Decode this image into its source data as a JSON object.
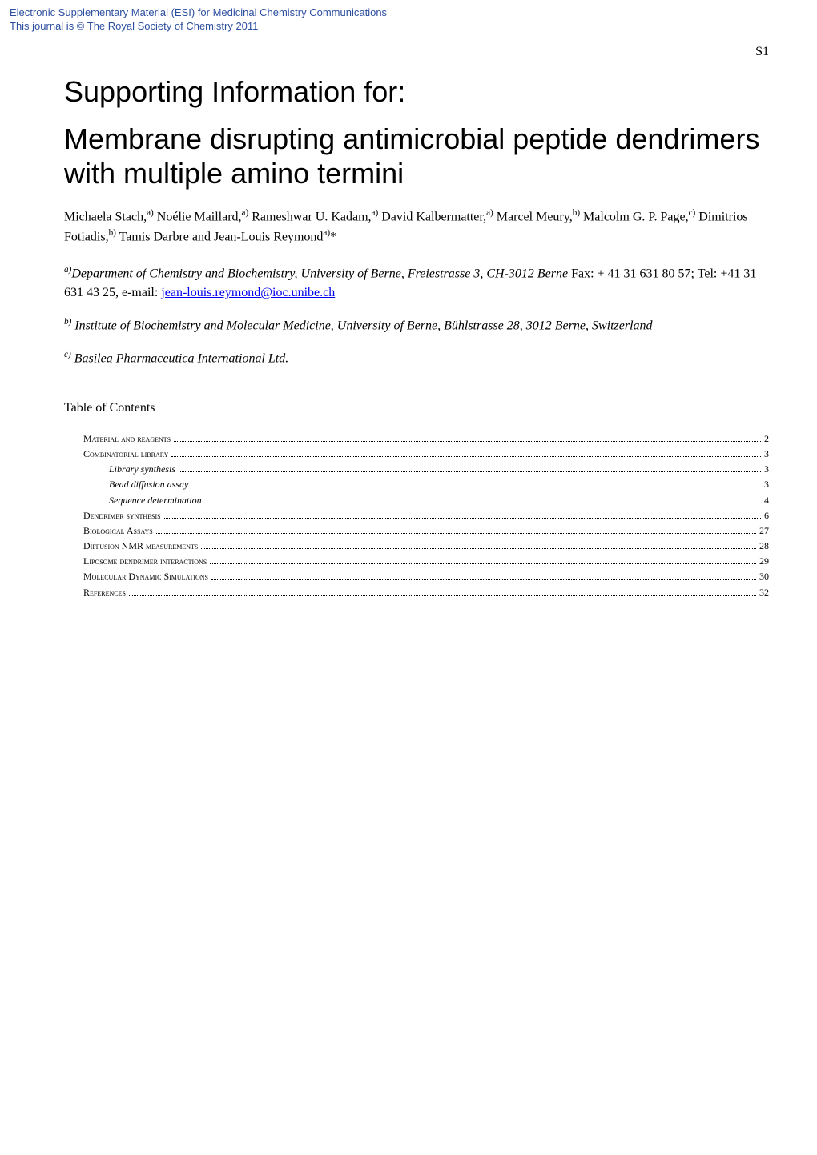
{
  "esi_header": {
    "line1": "Electronic Supplementary Material (ESI) for Medicinal Chemistry Communications",
    "line2": "This journal is © The Royal Society of Chemistry 2011"
  },
  "page_number": "S1",
  "main_title": "Supporting Information for:",
  "subtitle": "Membrane disrupting antimicrobial peptide dendrimers with multiple amino termini",
  "authors_html": "Michaela Stach,<sup>a)</sup> Noélie Maillard,<sup>a)</sup> Rameshwar U. Kadam,<sup>a)</sup> David Kalbermatter,<sup>a)</sup> Marcel Meury,<sup>b)</sup> Malcolm G. P. Page,<sup>c)</sup> Dimitrios Fotiadis,<sup>b)</sup> Tamis Darbre and Jean-Louis Reymond<sup>a)</sup>*",
  "affiliations": [
    {
      "sup": "a)",
      "italic": "Department of Chemistry and Biochemistry, University of Berne, Freiestrasse 3, CH-3012 Berne",
      "plain": " Fax: + 41 31 631 80 57; Tel: +41 31 631 43 25, e-mail: ",
      "email": "jean-louis.reymond@ioc.unibe.ch"
    },
    {
      "sup": "b)",
      "italic": " Institute of Biochemistry and Molecular Medicine, University of Berne, Bühlstrasse 28, 3012 Berne, Switzerland",
      "plain": "",
      "email": ""
    },
    {
      "sup": "c)",
      "italic": " Basilea Pharmaceutica International Ltd.",
      "plain": "",
      "email": ""
    }
  ],
  "toc_heading": "Table of Contents",
  "toc": [
    {
      "level": 1,
      "label": "Material and reagents",
      "page": "2"
    },
    {
      "level": 1,
      "label": "Combinatorial library",
      "page": "3"
    },
    {
      "level": 2,
      "label": "Library synthesis",
      "page": "3"
    },
    {
      "level": 2,
      "label": "Bead diffusion assay",
      "page": "3"
    },
    {
      "level": 2,
      "label": "Sequence determination",
      "page": "4"
    },
    {
      "level": 1,
      "label": "Dendrimer synthesis",
      "page": "6"
    },
    {
      "level": 1,
      "label": "Biological Assays",
      "page": "27"
    },
    {
      "level": 1,
      "label": "Diffusion NMR measurements",
      "page": "28"
    },
    {
      "level": 1,
      "label": "Liposome dendrimer interactions",
      "page": "29"
    },
    {
      "level": 1,
      "label": "Molecular Dynamic Simulations",
      "page": "30"
    },
    {
      "level": 1,
      "label": "References",
      "page": "32"
    }
  ],
  "colors": {
    "esi_header_text": "#2d4fa0",
    "body_text": "#000000",
    "link": "#0000ee",
    "background": "#ffffff"
  }
}
